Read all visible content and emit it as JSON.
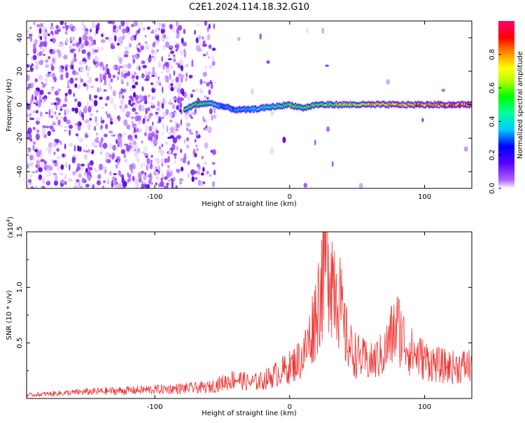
{
  "title": "C2E1.2024.114.18.32.G10",
  "chart_data": [
    {
      "type": "heatmap",
      "xlabel": "Height of straight line (km)",
      "ylabel": "Frequency (Hz)",
      "xlim": [
        -195,
        135
      ],
      "ylim": [
        -50,
        50
      ],
      "xticks": [
        -100,
        0,
        100
      ],
      "xtick_labels": [
        "-100",
        "0",
        "100"
      ],
      "yticks": [
        -40,
        -20,
        0,
        20,
        40
      ],
      "ytick_labels": [
        "-40",
        "-20",
        "0",
        "20",
        "40"
      ],
      "colorbar": {
        "label": "Normalized spectral amplitude",
        "range": [
          0,
          1
        ],
        "ticks": [
          0.0,
          0.2,
          0.4,
          0.6,
          0.8
        ],
        "tick_labels": [
          "0.0",
          "0.2",
          "0.4",
          "0.6",
          "0.8"
        ],
        "colors": [
          "#ffffff",
          "#7a00ff",
          "#0000ff",
          "#00ffff",
          "#00ff00",
          "#ffff00",
          "#ff0000",
          "#ff0060"
        ]
      },
      "regions": [
        {
          "x_range": [
            -195,
            -78
          ],
          "freq_range": [
            -50,
            50
          ],
          "amplitude": 0.05
        },
        {
          "x_range": [
            -78,
            -55
          ],
          "freq_range": [
            -50,
            50
          ],
          "amplitude": 0.03
        },
        {
          "x_range": [
            -55,
            135
          ],
          "freq_range": [
            -50,
            50
          ],
          "amplitude": 0.005
        }
      ],
      "ridge": {
        "x": [
          -78,
          -70,
          -60,
          -50,
          -40,
          -30,
          -20,
          -10,
          0,
          10,
          20,
          40,
          60,
          80,
          100,
          120,
          135
        ],
        "freq": [
          -3,
          0,
          1,
          -1,
          -3,
          -3,
          -2,
          -1,
          0,
          -2,
          0,
          0,
          0,
          0,
          0,
          0,
          0
        ],
        "amplitude": [
          0.45,
          0.55,
          0.5,
          0.3,
          0.3,
          0.35,
          0.4,
          0.45,
          0.55,
          0.5,
          0.55,
          0.6,
          0.7,
          0.75,
          0.8,
          0.85,
          0.85
        ]
      }
    },
    {
      "type": "line",
      "xlabel": "Height of straight line (km)",
      "ylabel": "SNR (10 * v/v)",
      "scale_label": "(x10",
      "scale_exp": "4",
      "xlim": [
        -195,
        135
      ],
      "ylim": [
        0,
        1.5
      ],
      "xticks": [
        -100,
        0,
        100
      ],
      "xtick_labels": [
        "-100",
        "0",
        "100"
      ],
      "yticks": [
        0.5,
        1.0,
        1.5
      ],
      "ytick_labels": [
        "0.5",
        "1.0",
        "1.5"
      ],
      "color": "#ee3333",
      "envelope": {
        "x": [
          -195,
          -150,
          -100,
          -60,
          -40,
          -30,
          -20,
          -10,
          0,
          10,
          15,
          20,
          25,
          28,
          32,
          35,
          38,
          40,
          45,
          50,
          60,
          70,
          75,
          80,
          85,
          90,
          100,
          110,
          120,
          135
        ],
        "y": [
          0.03,
          0.06,
          0.08,
          0.1,
          0.18,
          0.14,
          0.16,
          0.22,
          0.28,
          0.38,
          0.55,
          0.8,
          1.15,
          1.35,
          1.1,
          1.05,
          0.8,
          0.62,
          0.45,
          0.38,
          0.32,
          0.4,
          0.55,
          0.65,
          0.52,
          0.42,
          0.35,
          0.3,
          0.28,
          0.3
        ]
      }
    }
  ]
}
